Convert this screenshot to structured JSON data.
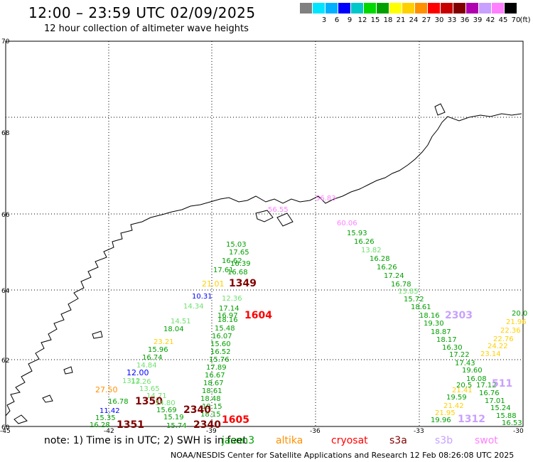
{
  "header": {
    "title": "12:00 – 23:59 UTC 02/09/2025",
    "subtitle": "12 hour collection of altimeter wave heights"
  },
  "legend": {
    "unit": "(ft)",
    "bins": [
      {
        "label": "",
        "color": "#808080"
      },
      {
        "label": "3",
        "color": "#00e5ff"
      },
      {
        "label": "6",
        "color": "#00b0ff"
      },
      {
        "label": "9",
        "color": "#0000ff"
      },
      {
        "label": "12",
        "color": "#00c8c8"
      },
      {
        "label": "15",
        "color": "#00d800"
      },
      {
        "label": "18",
        "color": "#00a000"
      },
      {
        "label": "21",
        "color": "#ffff00"
      },
      {
        "label": "24",
        "color": "#ffd000"
      },
      {
        "label": "27",
        "color": "#ff9000"
      },
      {
        "label": "30",
        "color": "#ff0000"
      },
      {
        "label": "33",
        "color": "#c80000"
      },
      {
        "label": "36",
        "color": "#800000"
      },
      {
        "label": "39",
        "color": "#b000b0"
      },
      {
        "label": "42",
        "color": "#c8a0ff"
      },
      {
        "label": "45",
        "color": "#ff80ff"
      },
      {
        "label": "70",
        "color": "#000000"
      }
    ]
  },
  "axes": {
    "lat_labels": [
      "70",
      "68",
      "66",
      "64",
      "62",
      "60"
    ],
    "lon_labels": [
      "-45",
      "-42",
      "-39",
      "-36",
      "-33",
      "-30"
    ]
  },
  "readings": [
    {
      "text": "60.06",
      "color": "#ff80ff"
    },
    {
      "text": "56.83",
      "color": "#ff80ff"
    },
    {
      "text": "56.55",
      "color": "#ff80ff"
    },
    {
      "text": "15.93",
      "color": "#00a000"
    },
    {
      "text": "16.26",
      "color": "#00a000"
    },
    {
      "text": "13.82",
      "color": "#70e070"
    },
    {
      "text": "16.28",
      "color": "#00a000"
    },
    {
      "text": "16.26",
      "color": "#00a000"
    },
    {
      "text": "17.24",
      "color": "#00a000"
    },
    {
      "text": "16.78",
      "color": "#00a000"
    },
    {
      "text": "13.85",
      "color": "#70e070"
    },
    {
      "text": "15.72",
      "color": "#00a000"
    },
    {
      "text": "18.61",
      "color": "#00a000"
    },
    {
      "text": "18.16",
      "color": "#00a000"
    },
    {
      "text": "19.30",
      "color": "#00a000"
    },
    {
      "text": "18.87",
      "color": "#00a000"
    },
    {
      "text": "18.17",
      "color": "#00a000"
    },
    {
      "text": "16.30",
      "color": "#00a000"
    },
    {
      "text": "17.22",
      "color": "#00a000"
    },
    {
      "text": "17.43",
      "color": "#00a000"
    },
    {
      "text": "19.60",
      "color": "#00a000"
    },
    {
      "text": "16.08",
      "color": "#00a000"
    },
    {
      "text": "20.5",
      "color": "#00a000"
    },
    {
      "text": "17.12",
      "color": "#00a000"
    },
    {
      "text": "16.76",
      "color": "#00a000"
    },
    {
      "text": "17.01",
      "color": "#00a000"
    },
    {
      "text": "15.24",
      "color": "#00a000"
    },
    {
      "text": "15.88",
      "color": "#00a000"
    },
    {
      "text": "16.53",
      "color": "#00a000"
    },
    {
      "text": "19.59",
      "color": "#00a000"
    },
    {
      "text": "19.96",
      "color": "#00a000"
    },
    {
      "text": "21.42",
      "color": "#ffd000"
    },
    {
      "text": "21.95",
      "color": "#ffd000"
    },
    {
      "text": "21.41",
      "color": "#ffd000"
    },
    {
      "text": "20.0",
      "color": "#00a000"
    },
    {
      "text": "21.96",
      "color": "#ffd000"
    },
    {
      "text": "22.36",
      "color": "#ffd000"
    },
    {
      "text": "22.76",
      "color": "#ffd000"
    },
    {
      "text": "24.22",
      "color": "#ffd000"
    },
    {
      "text": "23.14",
      "color": "#ffd000"
    },
    {
      "text": "2303",
      "color": "#c8a0ff"
    },
    {
      "text": "1312",
      "color": "#c8a0ff"
    },
    {
      "text": "511",
      "color": "#c8a0ff"
    },
    {
      "text": "15.03",
      "color": "#00a000"
    },
    {
      "text": "17.65",
      "color": "#00a000"
    },
    {
      "text": "16.62",
      "color": "#00a000"
    },
    {
      "text": "16.39",
      "color": "#00a000"
    },
    {
      "text": "17.61",
      "color": "#00a000"
    },
    {
      "text": "16.68",
      "color": "#00a000"
    },
    {
      "text": "21.01",
      "color": "#ffd000"
    },
    {
      "text": "1349",
      "color": "#800000"
    },
    {
      "text": "10.31",
      "color": "#0000ff"
    },
    {
      "text": "12.36",
      "color": "#70e070"
    },
    {
      "text": "14.34",
      "color": "#70e070"
    },
    {
      "text": "17.14",
      "color": "#00a000"
    },
    {
      "text": "16.97",
      "color": "#00a000"
    },
    {
      "text": "1604",
      "color": "#ff0000"
    },
    {
      "text": "18.16",
      "color": "#00a000"
    },
    {
      "text": "15.48",
      "color": "#00a000"
    },
    {
      "text": "16.07",
      "color": "#00a000"
    },
    {
      "text": "15.60",
      "color": "#00a000"
    },
    {
      "text": "16.52",
      "color": "#00a000"
    },
    {
      "text": "15.76",
      "color": "#00a000"
    },
    {
      "text": "17.89",
      "color": "#00a000"
    },
    {
      "text": "16.67",
      "color": "#00a000"
    },
    {
      "text": "18.67",
      "color": "#00a000"
    },
    {
      "text": "18.61",
      "color": "#00a000"
    },
    {
      "text": "18.48",
      "color": "#00a000"
    },
    {
      "text": "19.15",
      "color": "#00a000"
    },
    {
      "text": "18.15",
      "color": "#00a000"
    },
    {
      "text": "1605",
      "color": "#ff0000"
    },
    {
      "text": "2340",
      "color": "#800000"
    },
    {
      "text": "2340",
      "color": "#800000"
    },
    {
      "text": "14.51",
      "color": "#70e070"
    },
    {
      "text": "18.04",
      "color": "#00a000"
    },
    {
      "text": "23.21",
      "color": "#ffd000"
    },
    {
      "text": "15.96",
      "color": "#00a000"
    },
    {
      "text": "16.74",
      "color": "#00a000"
    },
    {
      "text": "14.84",
      "color": "#70e070"
    },
    {
      "text": "12.00",
      "color": "#0000ff"
    },
    {
      "text": "1312",
      "color": "#70e070"
    },
    {
      "text": "13.26",
      "color": "#70e070"
    },
    {
      "text": "13.65",
      "color": "#70e070"
    },
    {
      "text": "27.50",
      "color": "#ff9000"
    },
    {
      "text": "14.71",
      "color": "#70e070"
    },
    {
      "text": "16.78",
      "color": "#00a000"
    },
    {
      "text": "1350",
      "color": "#800000"
    },
    {
      "text": "14.80",
      "color": "#70e070"
    },
    {
      "text": "11.42",
      "color": "#0000ff"
    },
    {
      "text": "15.69",
      "color": "#00a000"
    },
    {
      "text": "15.35",
      "color": "#00a000"
    },
    {
      "text": "15.19",
      "color": "#00a000"
    },
    {
      "text": "16.28",
      "color": "#00a000"
    },
    {
      "text": "1351",
      "color": "#800000"
    },
    {
      "text": "15.74",
      "color": "#00a000"
    }
  ],
  "footer": {
    "note": "note:  1) Time is in UTC;  2) SWH is in feet",
    "credit": "NOAA/NESDIS Center for Satellite Applications and Research     12 Feb 08:26:08 UTC 2025",
    "satellites": [
      {
        "name": "jason3",
        "color": "#00a000"
      },
      {
        "name": "altika",
        "color": "#ff9000"
      },
      {
        "name": "cryosat",
        "color": "#ff0000"
      },
      {
        "name": "s3a",
        "color": "#800000"
      },
      {
        "name": "s3b",
        "color": "#c8a0ff"
      },
      {
        "name": "swot",
        "color": "#ff80ff"
      }
    ]
  }
}
